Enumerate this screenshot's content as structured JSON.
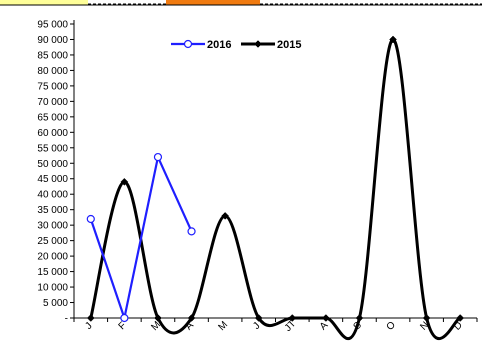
{
  "chart_data": {
    "type": "line",
    "categories": [
      "J",
      "F",
      "M",
      "A",
      "M",
      "J",
      "JT",
      "A",
      "S",
      "O",
      "N",
      "D"
    ],
    "y_ticks": [
      "-",
      "5 000",
      "10 000",
      "15 000",
      "20 000",
      "25 000",
      "30 000",
      "35 000",
      "40 000",
      "45 000",
      "50 000",
      "55 000",
      "60 000",
      "65 000",
      "70 000",
      "75 000",
      "80 000",
      "85 000",
      "90 000",
      "95 000"
    ],
    "ylim": [
      0,
      95000
    ],
    "ystep": 5000,
    "grid": false,
    "legend_position": "top-center",
    "series": [
      {
        "name": "2016",
        "color": "#1f1fff",
        "marker": "circle-open",
        "smooth": false,
        "values": [
          32000,
          0,
          52000,
          28000,
          null,
          null,
          null,
          null,
          null,
          null,
          null,
          null
        ]
      },
      {
        "name": "2015",
        "color": "#000000",
        "marker": "diamond-filled",
        "smooth": true,
        "values": [
          0,
          44000,
          0,
          0,
          33000,
          0,
          0,
          0,
          0,
          90000,
          0,
          0
        ]
      }
    ]
  },
  "decor": {
    "top_bar_accent": "#f07a10",
    "top_bar_highlight": "#ffff99"
  }
}
